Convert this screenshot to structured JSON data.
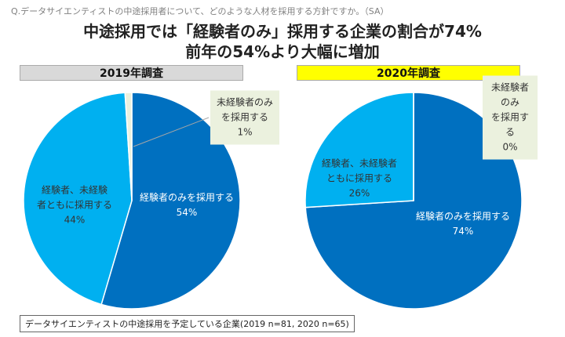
{
  "question": "Q.データサイエンティストの中途採用者について、どのような人材を採用する方針ですか。（SA）",
  "headline": [
    "中途採用では「経験者のみ」採用する企業の割合が74%",
    "前年の54%より大幅に増加"
  ],
  "note": "データサイエンティストの中途採用を予定している企業(2019 n=81, 2020 n=65)",
  "chart_data": [
    {
      "type": "pie",
      "title": "2019年調査",
      "title_color": "#d9d9d9",
      "categories": [
        "経験者のみを採用する",
        "経験者、未経験\n者ともに採用する",
        "未経験者のみ\nを採用する"
      ],
      "values": [
        54,
        44,
        1
      ],
      "value_labels": [
        "54%",
        "44%",
        "1%"
      ],
      "colors": [
        "#0070c0",
        "#00b0f0",
        "#ebf1de"
      ]
    },
    {
      "type": "pie",
      "title": "2020年調査",
      "title_color": "#ffff00",
      "categories": [
        "経験者のみを採用する",
        "経験者、未経験者\nともに採用する",
        "未経験者のみ\nを採用する"
      ],
      "values": [
        74,
        26,
        0
      ],
      "value_labels": [
        "74%",
        "26%",
        "0%"
      ],
      "colors": [
        "#0070c0",
        "#00b0f0",
        "#ebf1de"
      ]
    }
  ]
}
